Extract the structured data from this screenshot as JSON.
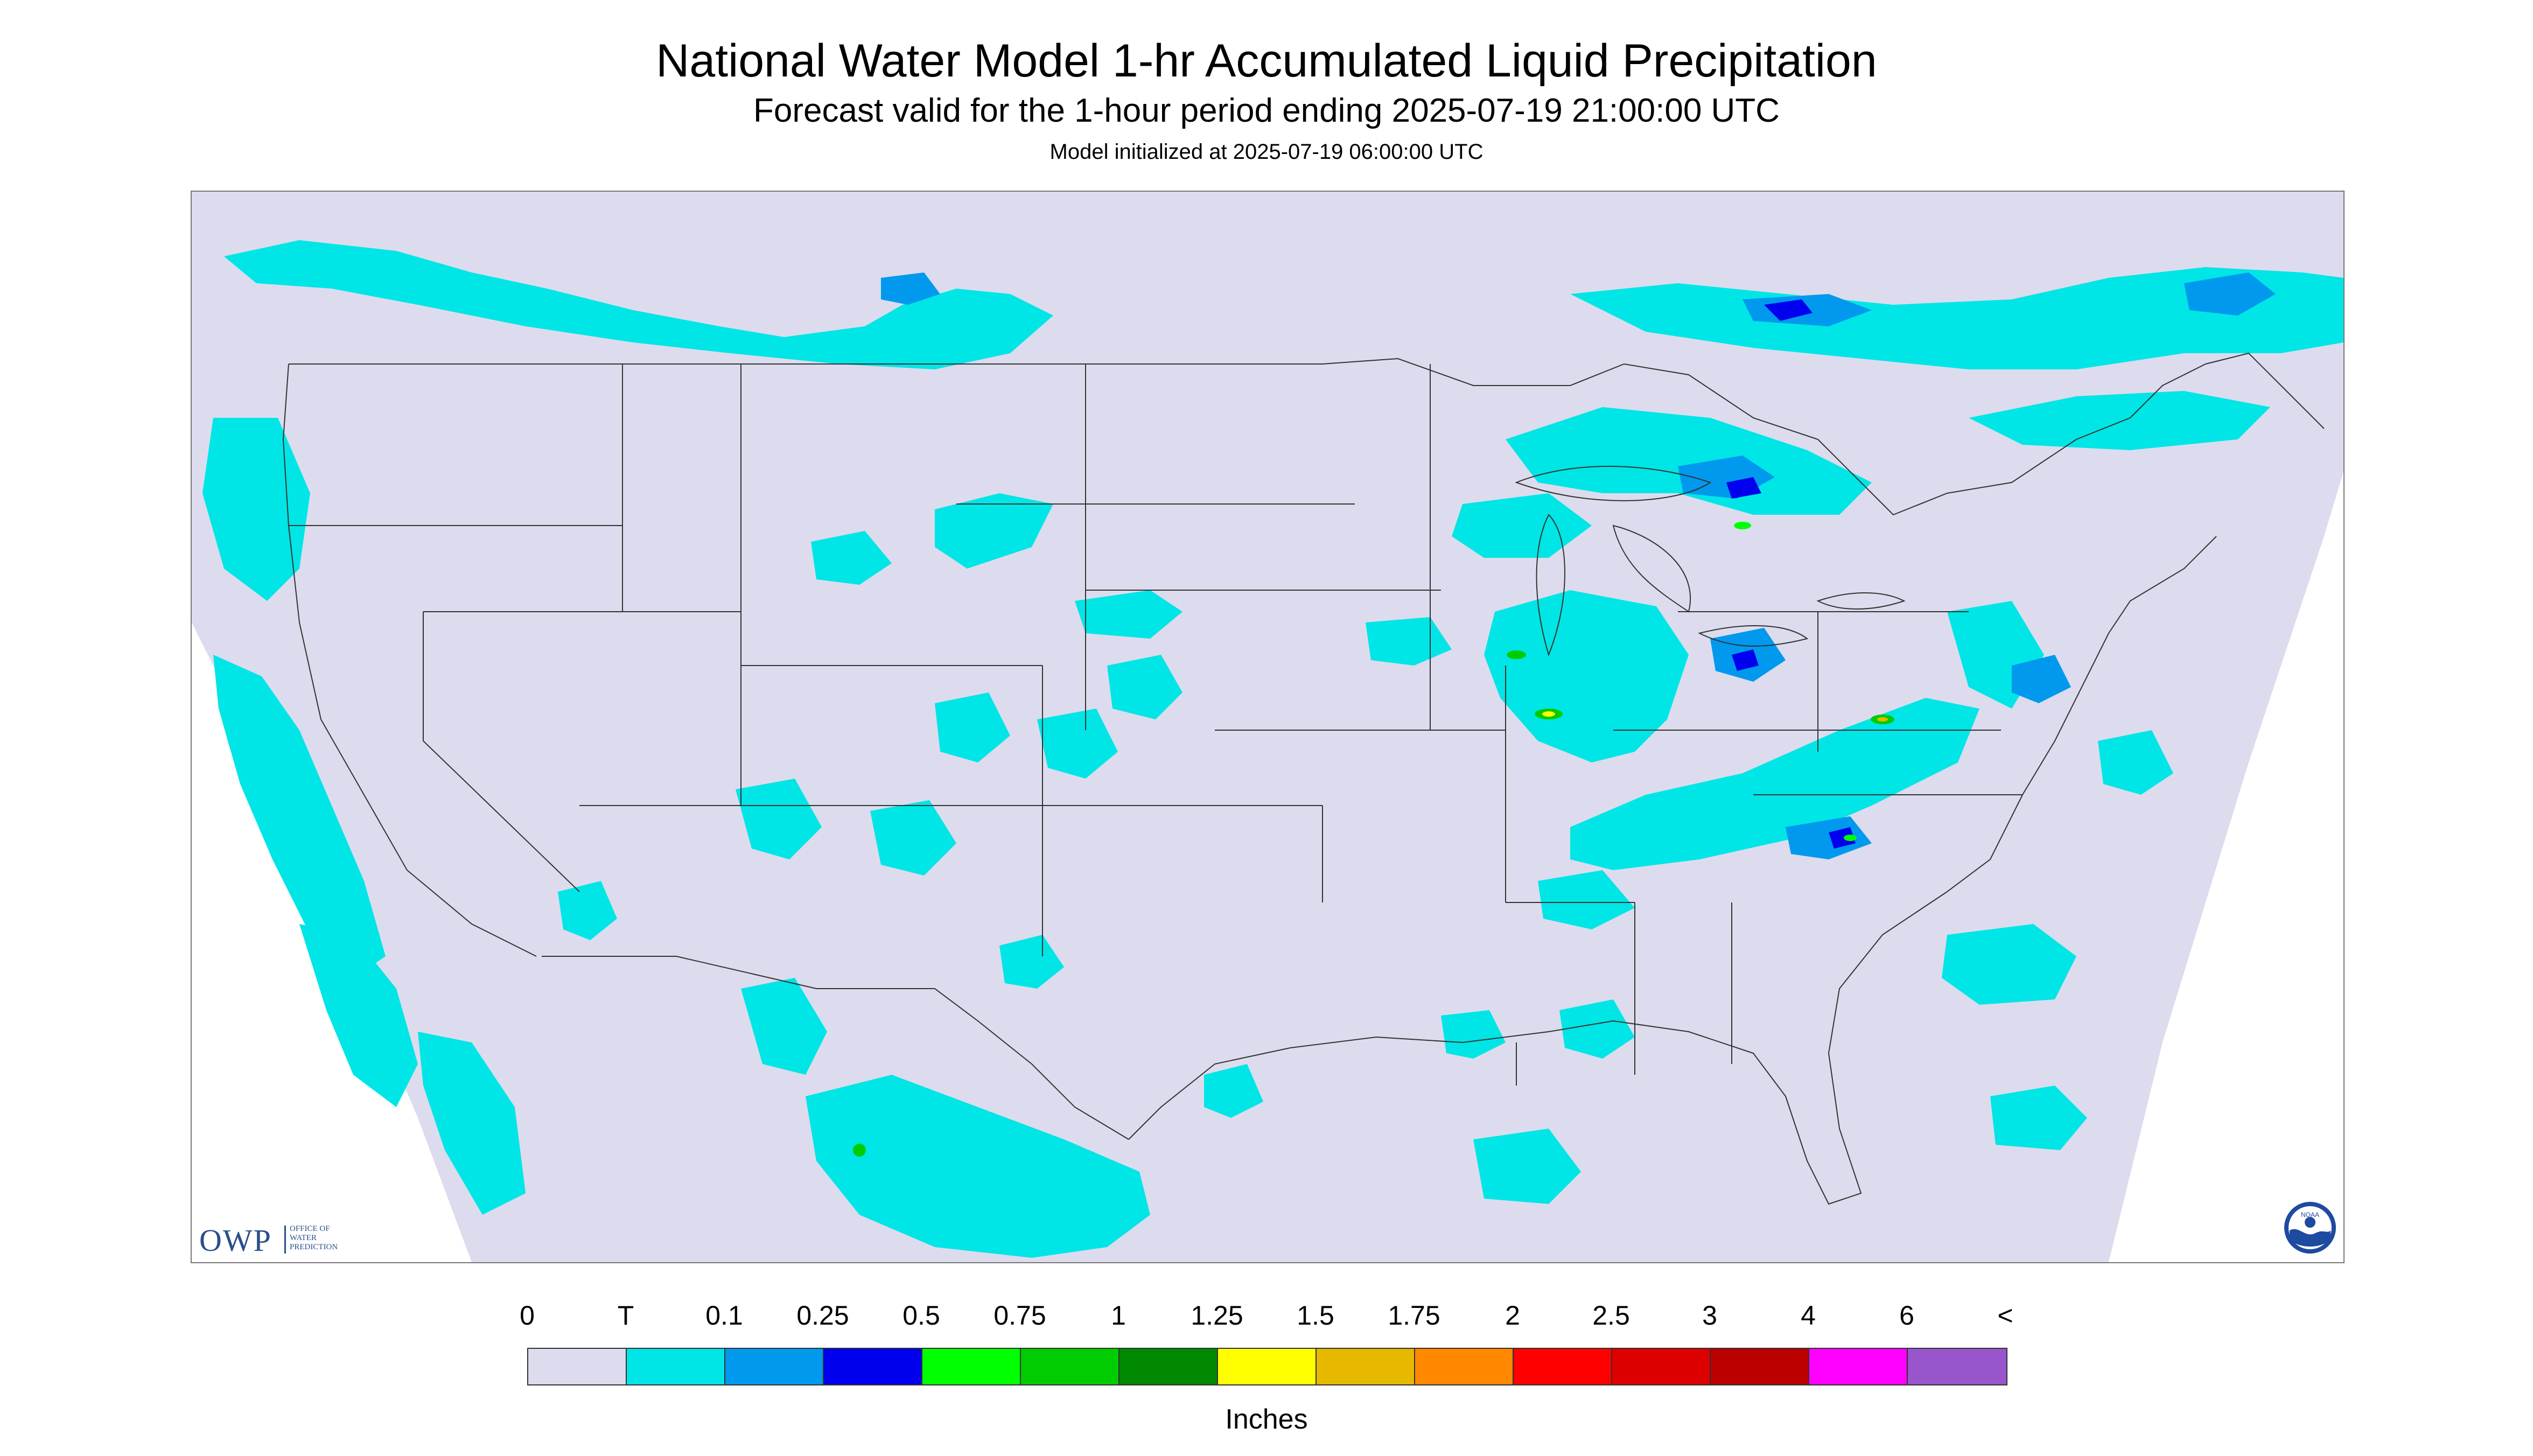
{
  "header": {
    "title": "National Water Model 1-hr Accumulated Liquid Precipitation",
    "subtitle": "Forecast valid for the 1-hour period ending 2025-07-19 21:00:00 UTC",
    "init": "Model initialized at 2025-07-19 06:00:00 UTC"
  },
  "logos": {
    "owp_letters": "OWP",
    "owp_line1": "OFFICE OF",
    "owp_line2": "WATER",
    "owp_line3": "PREDICTION",
    "noaa": "NOAA"
  },
  "map": {
    "background_color": "#dcdcee",
    "outside_color": "#ffffff",
    "border_color": "#333333",
    "precip_trace_color": "#00e5e5"
  },
  "legend": {
    "tick_labels": [
      "0",
      "T",
      "0.1",
      "0.25",
      "0.5",
      "0.75",
      "1",
      "1.25",
      "1.5",
      "1.75",
      "2",
      "2.5",
      "3",
      "4",
      "6",
      "<"
    ],
    "colors": [
      "#dcdcee",
      "#00e5e5",
      "#0099ee",
      "#0000ee",
      "#00ff00",
      "#00cc00",
      "#008800",
      "#ffff00",
      "#e6b800",
      "#ff8800",
      "#ff0000",
      "#dd0000",
      "#bb0000",
      "#ff00ff",
      "#9955cc"
    ],
    "units": "Inches"
  }
}
